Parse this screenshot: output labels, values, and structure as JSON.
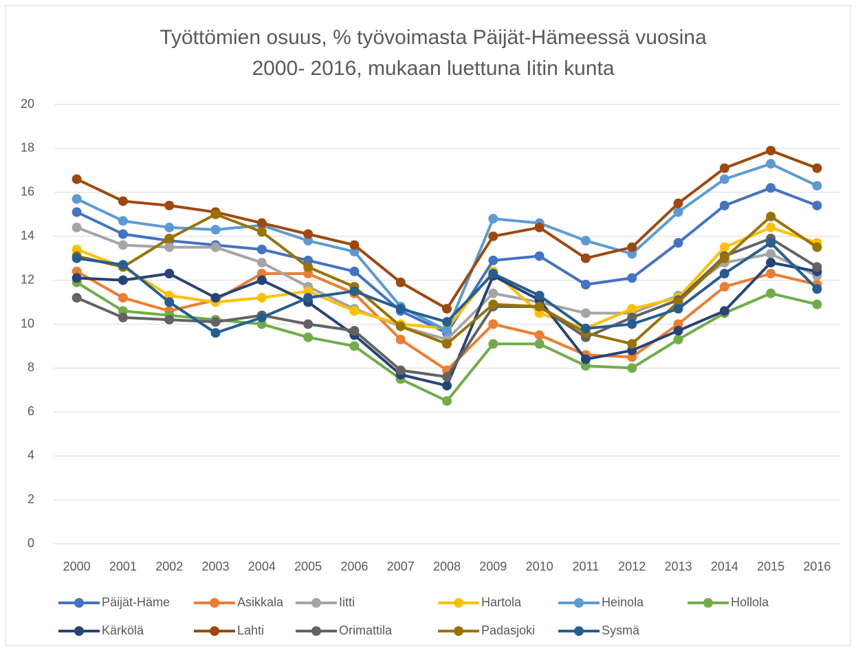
{
  "chart_data": {
    "type": "line",
    "title": [
      "Työttömien osuus, % työvoimasta Päijät-Hämeessä  vuosina",
      "2000- 2016, mukaan luettuna Iitin kunta"
    ],
    "categories": [
      "2000",
      "2001",
      "2002",
      "2003",
      "2004",
      "2005",
      "2006",
      "2007",
      "2008",
      "2009",
      "2010",
      "2011",
      "2012",
      "2013",
      "2014",
      "2015",
      "2016"
    ],
    "series": [
      {
        "name": "Päijät-Häme",
        "color": "#4472C4",
        "values": [
          15.1,
          14.1,
          13.8,
          13.6,
          13.4,
          12.9,
          12.4,
          10.6,
          9.6,
          12.9,
          13.1,
          11.8,
          12.1,
          13.7,
          15.4,
          16.2,
          15.4
        ]
      },
      {
        "name": "Asikkala",
        "color": "#ED7D31",
        "values": [
          12.4,
          11.2,
          10.6,
          11.1,
          12.3,
          12.3,
          11.4,
          9.3,
          7.9,
          10.0,
          9.5,
          8.6,
          8.5,
          10.0,
          11.7,
          12.3,
          11.8
        ]
      },
      {
        "name": "Iitti",
        "color": "#A5A5A5",
        "values": [
          14.4,
          13.6,
          13.5,
          13.5,
          12.8,
          11.7,
          10.7,
          9.9,
          9.3,
          11.4,
          11.0,
          10.5,
          10.5,
          11.3,
          12.8,
          13.2,
          12.2
        ]
      },
      {
        "name": "Hartola",
        "color": "#FFC000",
        "values": [
          13.4,
          12.6,
          11.3,
          11.0,
          11.2,
          11.5,
          10.6,
          10.0,
          9.8,
          12.4,
          10.5,
          9.8,
          10.7,
          11.2,
          13.5,
          14.4,
          13.7
        ]
      },
      {
        "name": "Heinola",
        "color": "#5B9BD5",
        "values": [
          15.7,
          14.7,
          14.4,
          14.3,
          14.5,
          13.8,
          13.3,
          10.8,
          9.7,
          14.8,
          14.6,
          13.8,
          13.2,
          15.1,
          16.6,
          17.3,
          16.3
        ]
      },
      {
        "name": "Hollola",
        "color": "#70AD47",
        "values": [
          11.9,
          10.6,
          10.4,
          10.2,
          10.0,
          9.4,
          9.0,
          7.5,
          6.5,
          9.1,
          9.1,
          8.1,
          8.0,
          9.3,
          10.5,
          11.4,
          10.9
        ]
      },
      {
        "name": "Kärkölä",
        "color": "#264478",
        "values": [
          12.1,
          12.0,
          12.3,
          11.2,
          12.0,
          11.0,
          9.5,
          7.7,
          7.2,
          12.2,
          11.1,
          8.4,
          8.8,
          9.7,
          10.6,
          12.8,
          12.4
        ]
      },
      {
        "name": "Lahti",
        "color": "#9E480E",
        "values": [
          16.6,
          15.6,
          15.4,
          15.1,
          14.6,
          14.1,
          13.6,
          11.9,
          10.7,
          14.0,
          14.4,
          13.0,
          13.5,
          15.5,
          17.1,
          17.9,
          17.1
        ]
      },
      {
        "name": "Orimattila",
        "color": "#636363",
        "values": [
          11.2,
          10.3,
          10.2,
          10.1,
          10.4,
          10.0,
          9.7,
          7.9,
          7.6,
          10.8,
          10.8,
          9.4,
          10.3,
          11.1,
          13.1,
          13.9,
          12.6
        ]
      },
      {
        "name": "Padasjoki",
        "color": "#997300",
        "values": [
          13.1,
          12.6,
          13.9,
          15.0,
          14.2,
          12.6,
          11.7,
          9.9,
          9.1,
          10.9,
          10.8,
          9.6,
          9.1,
          11.0,
          13.0,
          14.9,
          13.5
        ]
      },
      {
        "name": "Sysmä",
        "color": "#255E91",
        "values": [
          13.0,
          12.7,
          11.0,
          9.6,
          10.3,
          11.2,
          11.5,
          10.7,
          10.1,
          12.3,
          11.3,
          9.8,
          10.0,
          10.7,
          12.3,
          13.7,
          11.6
        ]
      }
    ],
    "ylim": [
      0,
      20
    ],
    "yticks": [
      0,
      2,
      4,
      6,
      8,
      10,
      12,
      14,
      16,
      18,
      20
    ],
    "grid": true,
    "legend": "bottom"
  }
}
